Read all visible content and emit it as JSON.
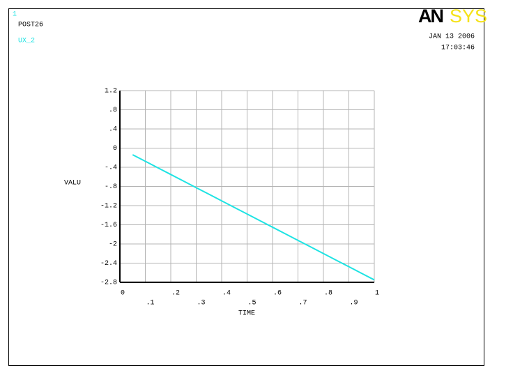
{
  "chart_data": {
    "type": "line",
    "window_number": "1",
    "program": "POST26",
    "logo": [
      "AN",
      "SYS"
    ],
    "date": "JAN 13 2006",
    "time": "17:03:46",
    "x_label": "TIME",
    "y_label": "VALU",
    "x": [
      0.05,
      0.1,
      0.15,
      0.2,
      0.25,
      0.3,
      0.35,
      0.4,
      0.45,
      0.5,
      0.55,
      0.6,
      0.65,
      0.7,
      0.75,
      0.8,
      0.85,
      0.9,
      0.95,
      1
    ],
    "series": [
      {
        "name": "UX_2",
        "color": "#1ee3e3",
        "values": [
          -0.1375,
          -0.275,
          -0.4125,
          -0.55,
          -0.6875,
          -0.825,
          -0.9625,
          -1.1,
          -1.2375,
          -1.375,
          -1.5125,
          -1.65,
          -1.7875,
          -1.925,
          -2.0625,
          -2.2,
          -2.3375,
          -2.475,
          -2.6125,
          -2.75
        ]
      }
    ],
    "xlim": [
      0,
      1
    ],
    "xticks": [
      0,
      {
        "value": 0.1,
        "label": ".1"
      },
      {
        "value": 0.2,
        "label": ".2"
      },
      {
        "value": 0.3,
        "label": ".3"
      },
      {
        "value": 0.4,
        "label": ".4"
      },
      {
        "value": 0.5,
        "label": ".5"
      },
      {
        "value": 0.6,
        "label": ".6"
      },
      {
        "value": 0.7,
        "label": ".7"
      },
      {
        "value": 0.8,
        "label": ".8"
      },
      {
        "value": 0.9,
        "label": ".9"
      },
      1
    ],
    "ylim": [
      -2.8,
      1.2
    ],
    "yticks": [
      1.2,
      {
        "value": 0.8,
        "label": ".8"
      },
      {
        "value": 0.4,
        "label": ".4"
      },
      0,
      {
        "value": -0.4,
        "label": "-.4"
      },
      {
        "value": -0.8,
        "label": "-.8"
      },
      -1.2,
      -1.6,
      -2,
      -2.4,
      -2.8
    ],
    "grid": true
  }
}
